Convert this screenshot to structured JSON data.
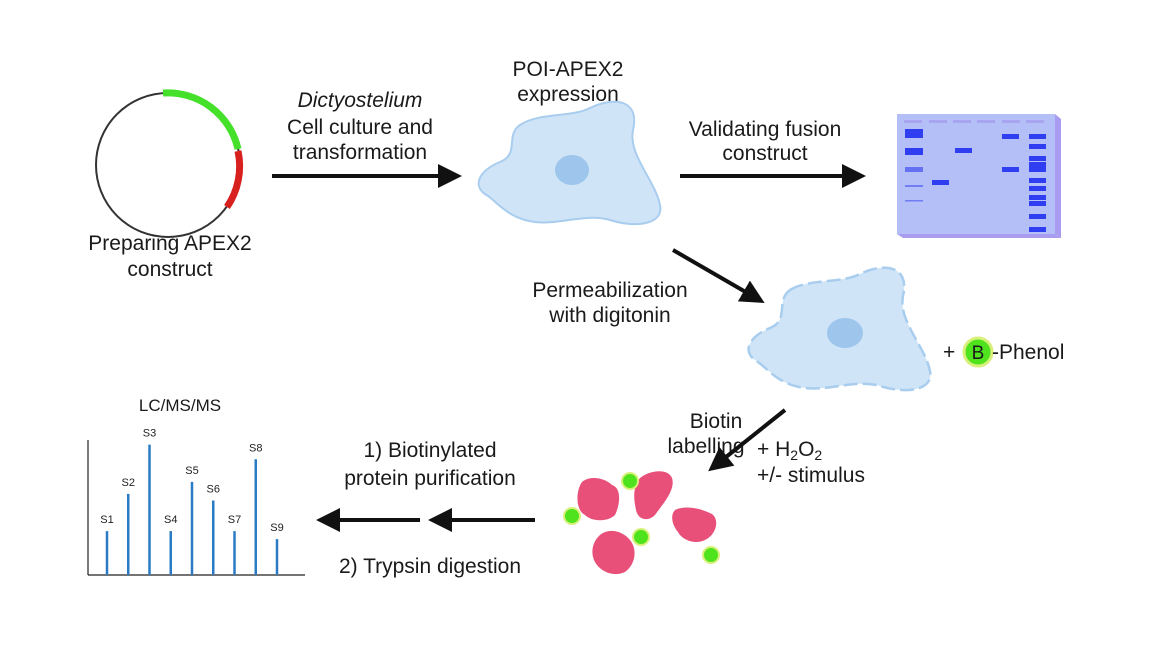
{
  "steps": {
    "plasmid": {
      "line1": "Preparing APEX2",
      "line2": "construct"
    },
    "culture": {
      "organism": "Dictyostelium",
      "line1": "Cell culture and",
      "line2": "transformation"
    },
    "expression": {
      "line1": "POI-APEX2",
      "line2": "expression"
    },
    "validation": {
      "line1": "Validating fusion",
      "line2": "construct"
    },
    "permeabilization": {
      "line1": "Permeabilization",
      "line2": "with digitonin"
    },
    "phenol": {
      "prefix": "+ ",
      "badge": "B",
      "suffix": "-Phenol"
    },
    "labelling": {
      "line1": "Biotin",
      "line2": "labelling",
      "reagent_prefix": "+ H",
      "reagent_sub1": "2",
      "reagent_mid": "O",
      "reagent_sub2": "2",
      "stimulus": "+/- stimulus"
    },
    "purification": {
      "line1": "1) Biotinylated",
      "line2": "protein purification",
      "line3": "2) Trypsin digestion"
    },
    "ms": {
      "title": "LC/MS/MS",
      "peaks": [
        {
          "label": "S1",
          "intensity": 0.33
        },
        {
          "label": "S2",
          "intensity": 0.61
        },
        {
          "label": "S3",
          "intensity": 0.98
        },
        {
          "label": "S4",
          "intensity": 0.33
        },
        {
          "label": "S5",
          "intensity": 0.7
        },
        {
          "label": "S6",
          "intensity": 0.56
        },
        {
          "label": "S7",
          "intensity": 0.33
        },
        {
          "label": "S8",
          "intensity": 0.87
        },
        {
          "label": "S9",
          "intensity": 0.27
        }
      ]
    }
  },
  "colors": {
    "plasmid_insert": "#44e02a",
    "plasmid_tag": "#d8211f",
    "cell_fill": "#cfe4f7",
    "cell_stroke": "#a9cdee",
    "nucleus": "#9ec5ec",
    "gel": "#b3bff6",
    "gel_band": "#2f3ef0",
    "protein": "#e8507a",
    "biotin": "#4fe31e",
    "peak": "#2a7bc4"
  }
}
